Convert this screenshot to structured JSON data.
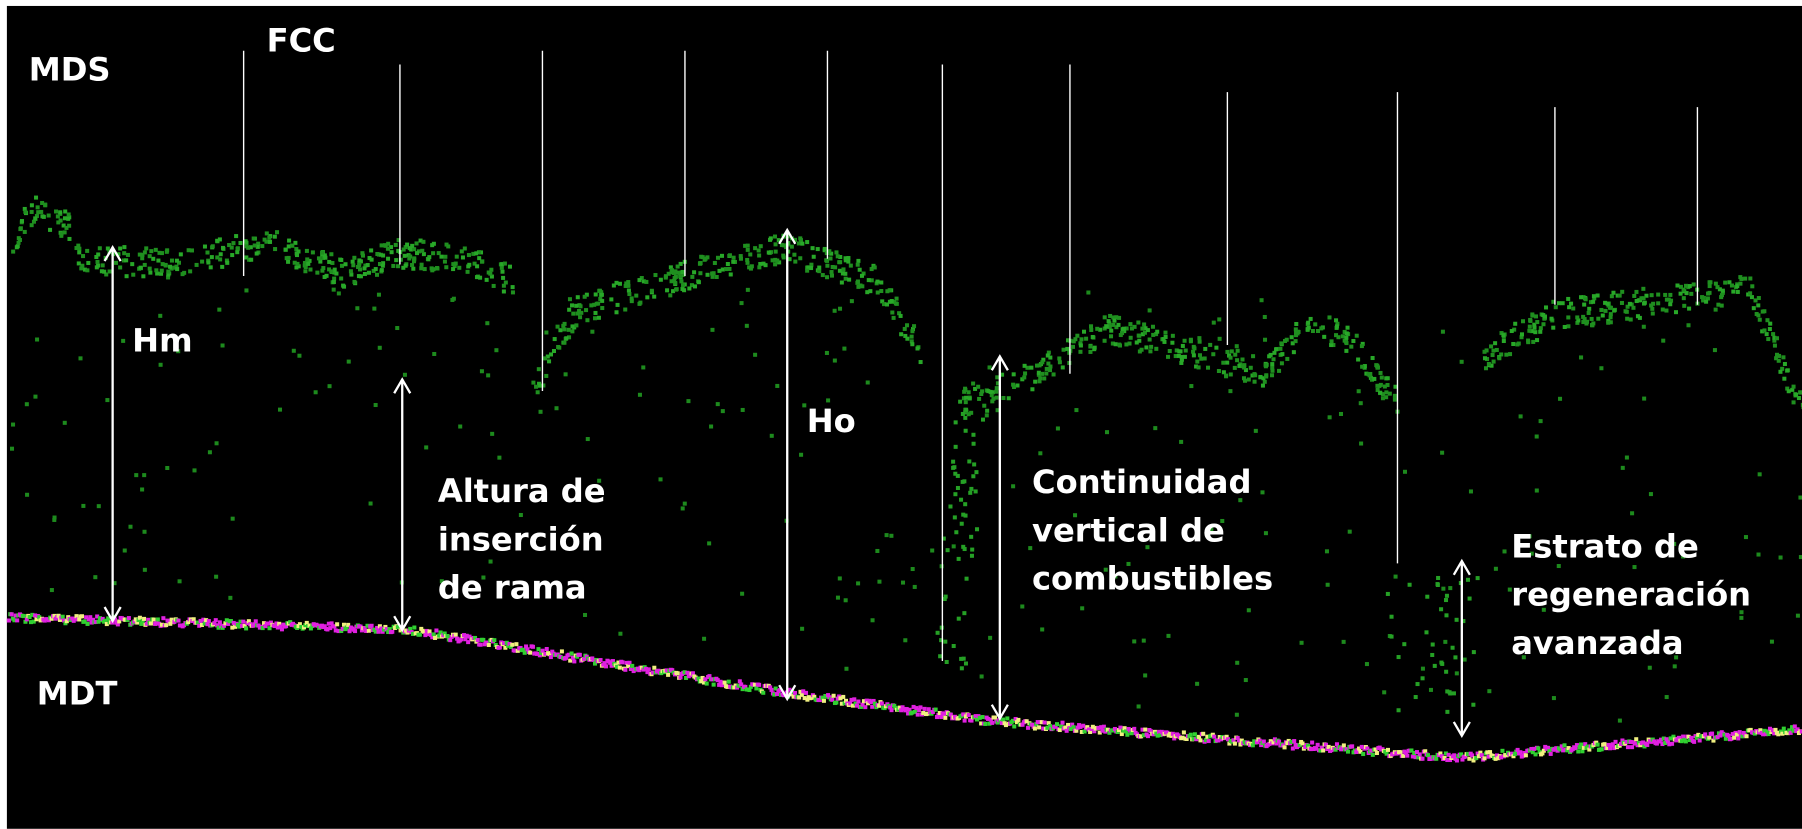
{
  "labels": {
    "mds": "MDS",
    "fcc": "FCC",
    "mdt": "MDT",
    "hm": "Hm",
    "ho": "Ho",
    "altura": [
      "Altura de",
      "inserción",
      "de rama"
    ],
    "continuidad": [
      "Continuidad",
      "vertical de",
      "combustibles"
    ],
    "estrato": [
      "Estrato de",
      "regeneración",
      "avanzada"
    ]
  }
}
